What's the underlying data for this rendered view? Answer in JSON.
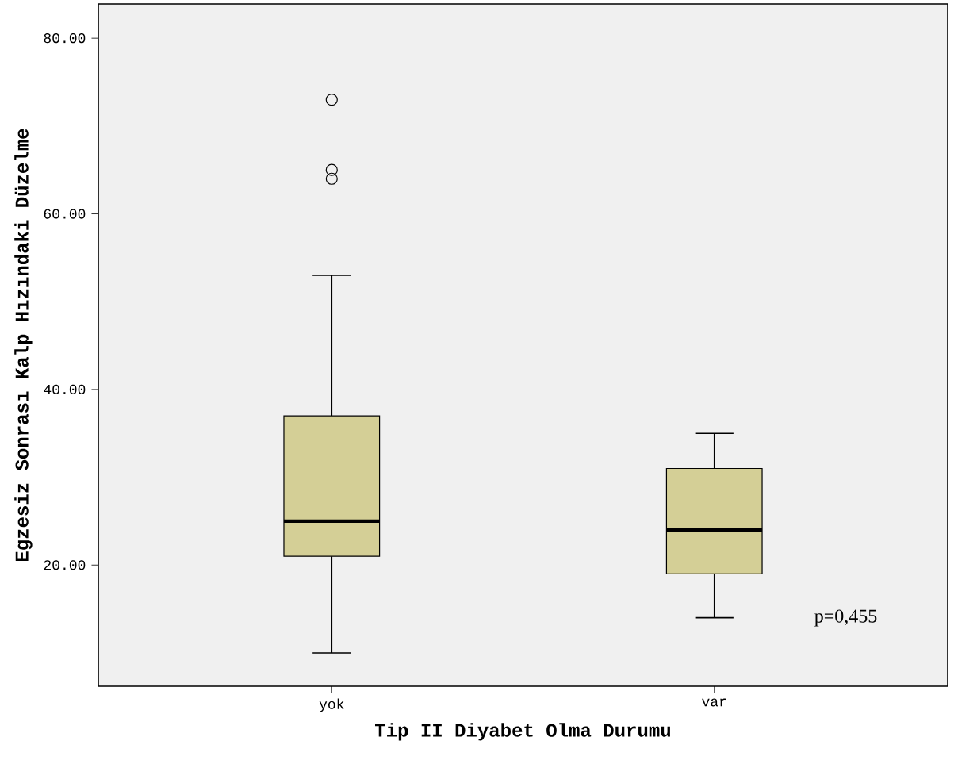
{
  "chart_data": {
    "type": "box",
    "xlabel": "Tip II Diyabet Olma Durumu",
    "ylabel": "Egzesiz Sonrası Kalp Hızındaki Düzelme",
    "categories": [
      "yok",
      "var"
    ],
    "series": [
      {
        "color": "#d4cf96",
        "boxes": [
          {
            "low": 10,
            "q1": 21,
            "median": 25,
            "q3": 37,
            "high": 53,
            "outliers": [
              73,
              65,
              64
            ]
          },
          {
            "low": 14,
            "q1": 19,
            "median": 24,
            "q3": 31,
            "high": 35
          }
        ]
      }
    ],
    "ylim": [
      6.2,
      83.9
    ],
    "yticks": [
      {
        "value": 20,
        "label": "20.00"
      },
      {
        "value": 40,
        "label": "40.00"
      },
      {
        "value": 60,
        "label": "60.00"
      },
      {
        "value": 80,
        "label": "80.00"
      }
    ],
    "annotations": [
      "p=0,455"
    ]
  }
}
